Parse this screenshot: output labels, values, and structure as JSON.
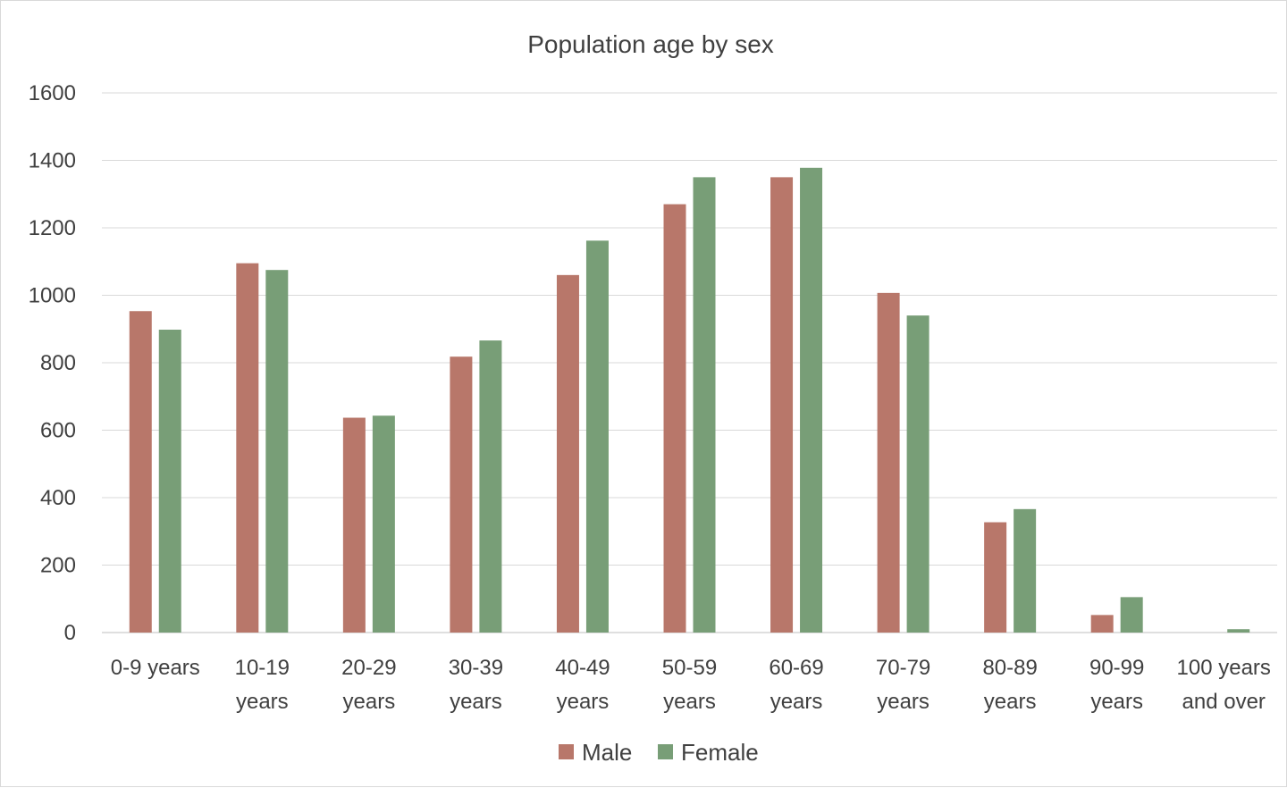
{
  "chart_data": {
    "type": "bar",
    "title": "Population age by sex",
    "xlabel": "",
    "ylabel": "",
    "ylim": [
      0,
      1600
    ],
    "yticks": [
      0,
      200,
      400,
      600,
      800,
      1000,
      1200,
      1400,
      1600
    ],
    "grid": "horizontal",
    "legend": "bottom",
    "categories": [
      [
        "0-9 years"
      ],
      [
        "10-19",
        "years"
      ],
      [
        "20-29",
        "years"
      ],
      [
        "30-39",
        "years"
      ],
      [
        "40-49",
        "years"
      ],
      [
        "50-59",
        "years"
      ],
      [
        "60-69",
        "years"
      ],
      [
        "70-79",
        "years"
      ],
      [
        "80-89",
        "years"
      ],
      [
        "90-99",
        "years"
      ],
      [
        "100 years",
        "and over"
      ]
    ],
    "series": [
      {
        "name": "Male",
        "color": "#b8776a",
        "values": [
          953,
          1095,
          637,
          818,
          1060,
          1270,
          1350,
          1007,
          327,
          52,
          0
        ]
      },
      {
        "name": "Female",
        "color": "#789e77",
        "values": [
          898,
          1075,
          643,
          866,
          1162,
          1350,
          1378,
          940,
          366,
          105,
          10
        ]
      }
    ]
  }
}
